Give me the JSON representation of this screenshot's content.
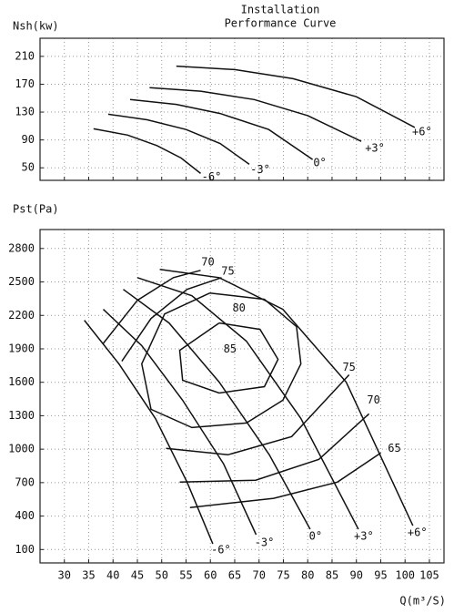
{
  "chart_data": [
    {
      "type": "line",
      "title": "Installation",
      "subtitle": "Performance Curve",
      "y_label": "Nsh(kw)",
      "xlim": [
        25,
        108
      ],
      "ylim": [
        32,
        236
      ],
      "xticks": [
        30,
        35,
        40,
        45,
        50,
        55,
        60,
        65,
        70,
        75,
        80,
        85,
        90,
        95,
        100,
        105
      ],
      "show_xtick_labels": false,
      "yticks": [
        50,
        90,
        130,
        170,
        210
      ],
      "grid": true,
      "series": [
        {
          "name": "-6°",
          "color": "#111111",
          "x": [
            36,
            43,
            49,
            54,
            58
          ],
          "values": [
            106,
            97,
            82,
            64,
            42
          ]
        },
        {
          "name": "-3°",
          "color": "#111111",
          "x": [
            39,
            47,
            55,
            62,
            68
          ],
          "values": [
            127,
            119,
            105,
            85,
            55
          ]
        },
        {
          "name": "0°",
          "color": "#111111",
          "x": [
            43.5,
            53,
            62,
            72,
            81
          ],
          "values": [
            148,
            141,
            128,
            105,
            62
          ]
        },
        {
          "name": "+3°",
          "color": "#111111",
          "x": [
            47.5,
            58,
            69,
            80,
            91
          ],
          "values": [
            165,
            160,
            148,
            125,
            88
          ]
        },
        {
          "name": "+6°",
          "color": "#111111",
          "x": [
            53,
            65,
            77,
            90,
            102
          ],
          "values": [
            196,
            191,
            178,
            152,
            108
          ]
        }
      ]
    },
    {
      "type": "line",
      "y_label": "Pst(Pa)",
      "x_label": "Q(m³/S)",
      "xlim": [
        25,
        108
      ],
      "ylim": [
        -20,
        2970
      ],
      "xticks": [
        30,
        35,
        40,
        45,
        50,
        55,
        60,
        65,
        70,
        75,
        80,
        85,
        90,
        95,
        100,
        105
      ],
      "show_xtick_labels": true,
      "yticks": [
        100,
        400,
        700,
        1000,
        1300,
        1600,
        1900,
        2200,
        2500,
        2800
      ],
      "grid": true,
      "series": [
        {
          "name": "-6°",
          "color": "#111111",
          "x": [
            34.1,
            41.2,
            48.7,
            55.2,
            60.5
          ],
          "values": [
            2156,
            1765,
            1276,
            705,
            151
          ]
        },
        {
          "name": "-3°",
          "color": "#111111",
          "x": [
            38,
            45.9,
            54.3,
            62.7,
            69.4
          ],
          "values": [
            2254,
            1928,
            1439,
            869,
            233
          ]
        },
        {
          "name": "0°",
          "color": "#111111",
          "x": [
            42.1,
            51.5,
            61.8,
            72.1,
            80.5
          ],
          "values": [
            2433,
            2132,
            1602,
            950,
            282
          ]
        },
        {
          "name": "+3°",
          "color": "#111111",
          "x": [
            45,
            56.2,
            67.4,
            78.6,
            90.4
          ],
          "values": [
            2539,
            2376,
            1969,
            1276,
            282
          ]
        },
        {
          "name": "+6°",
          "color": "#111111",
          "x": [
            49.6,
            61.8,
            74.9,
            87.9,
            101.6
          ],
          "values": [
            2613,
            2539,
            2254,
            1602,
            314
          ]
        },
        {
          "name": "70",
          "color": "#111111",
          "x": [
            37.9,
            45,
            52.4,
            58
          ],
          "values": [
            1944,
            2335,
            2539,
            2604
          ]
        },
        {
          "name": "75",
          "color": "#111111",
          "x": [
            41.8,
            47.8,
            55.2,
            62.3
          ],
          "values": [
            1789,
            2172,
            2433,
            2539
          ]
        },
        {
          "name": "75",
          "color": "#111111",
          "x": [
            50.9,
            63.6,
            76.7,
            88.5
          ],
          "values": [
            1007,
            950,
            1113,
            1667
          ]
        },
        {
          "name": "70",
          "color": "#111111",
          "x": [
            53.7,
            69.3,
            82.3,
            92.6
          ],
          "values": [
            705,
            722,
            909,
            1317
          ]
        },
        {
          "name": "65",
          "color": "#111111",
          "x": [
            55.8,
            73,
            86.1,
            95
          ],
          "values": [
            477,
            559,
            705,
            966
          ]
        },
        {
          "name": "80",
          "color": "#111111",
          "x": [
            59.9,
            71.1,
            77.7,
            78.6,
            74.9,
            67.4,
            56.2,
            47.8,
            45.9,
            50.6,
            59.9
          ],
          "values": [
            2401,
            2344,
            2099,
            1765,
            1439,
            1235,
            1194,
            1357,
            1765,
            2213,
            2401
          ]
        },
        {
          "name": "85",
          "color": "#111111",
          "x": [
            61.8,
            70.2,
            73.9,
            71.1,
            61.8,
            54.3,
            53.7,
            61.8
          ],
          "values": [
            2132,
            2075,
            1806,
            1561,
            1504,
            1618,
            1887,
            2132
          ]
        }
      ]
    }
  ]
}
